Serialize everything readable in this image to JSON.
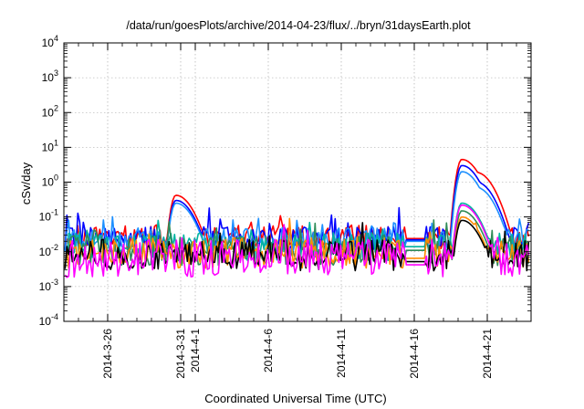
{
  "chart_data": {
    "type": "line",
    "title": "/data/run/goesPlots/archive/2014-04-23/flux/../bryn/31daysEarth.plot",
    "xlabel": "Coordinated Universal Time (UTC)",
    "ylabel": "cSv/day",
    "y_scale": "log",
    "ylim_exponent": [
      -4,
      4
    ],
    "y_tick_labels": [
      {
        "base": "10",
        "exp": "-4"
      },
      {
        "base": "10",
        "exp": "-3"
      },
      {
        "base": "10",
        "exp": "-2"
      },
      {
        "base": "10",
        "exp": "-1"
      },
      {
        "base": "10",
        "exp": "0"
      },
      {
        "base": "10",
        "exp": "1"
      },
      {
        "base": "10",
        "exp": "2"
      },
      {
        "base": "10",
        "exp": "3"
      },
      {
        "base": "10",
        "exp": "4"
      }
    ],
    "xlim": [
      "2014-03-23",
      "2014-04-24"
    ],
    "x_tick_labels": [
      "2014-3-26",
      "2014-3-31",
      "2014-4-1",
      "2014-4-6",
      "2014-4-11",
      "2014-4-16",
      "2014-4-21"
    ],
    "x_tick_dates": [
      "2014-03-26",
      "2014-03-31",
      "2014-04-01",
      "2014-04-06",
      "2014-04-11",
      "2014-04-16",
      "2014-04-21"
    ],
    "grid": true,
    "legend": "none",
    "series": [
      {
        "color": "#ff0000",
        "baseline": 0.026,
        "spread": 0.35,
        "peaks": [
          {
            "date": "2014-03-30T16:00",
            "value": 0.42
          },
          {
            "date": "2014-04-19T06:00",
            "value": 4.5
          },
          {
            "date": "2014-04-20T06:00",
            "value": 1.9
          },
          {
            "date": "2014-04-21T00:00",
            "value": 0.18
          }
        ],
        "gap": {
          "from": "2014-04-15T08:00",
          "to": "2014-04-16T20:00",
          "value": 0.024
        }
      },
      {
        "color": "#0000ff",
        "baseline": 0.024,
        "spread": 0.35,
        "peaks": [
          {
            "date": "2014-03-30T16:00",
            "value": 0.3
          },
          {
            "date": "2014-04-19T06:00",
            "value": 3.0
          },
          {
            "date": "2014-04-20T06:00",
            "value": 1.0
          },
          {
            "date": "2014-04-21T00:00",
            "value": 0.12
          }
        ],
        "gap": {
          "from": "2014-04-15T08:00",
          "to": "2014-04-16T20:00",
          "value": 0.022
        }
      },
      {
        "color": "#1e90ff",
        "baseline": 0.022,
        "spread": 0.35,
        "peaks": [
          {
            "date": "2014-03-30T16:00",
            "value": 0.25
          },
          {
            "date": "2014-04-19T06:00",
            "value": 2.0
          },
          {
            "date": "2014-04-20T06:00",
            "value": 0.7
          },
          {
            "date": "2014-04-21T00:00",
            "value": 0.09
          }
        ],
        "gap": {
          "from": "2014-04-15T08:00",
          "to": "2014-04-16T20:00",
          "value": 0.02
        }
      },
      {
        "color": "#00b3a0",
        "baseline": 0.014,
        "spread": 0.4,
        "peaks": [
          {
            "date": "2014-04-19T06:00",
            "value": 0.25
          },
          {
            "date": "2014-04-20T06:00",
            "value": 0.04
          }
        ],
        "gap": {
          "from": "2014-04-15T08:00",
          "to": "2014-04-16T20:00",
          "value": 0.014
        }
      },
      {
        "color": "#2e8b57",
        "baseline": 0.011,
        "spread": 0.45,
        "peaks": [
          {
            "date": "2014-04-19T06:00",
            "value": 0.15
          }
        ],
        "gap": {
          "from": "2014-04-15T08:00",
          "to": "2014-04-16T20:00",
          "value": 0.011
        }
      },
      {
        "color": "#ff8c00",
        "baseline": 0.0095,
        "spread": 0.45,
        "peaks": [
          {
            "date": "2014-04-19T06:00",
            "value": 0.1
          }
        ],
        "gap": {
          "from": "2014-04-15T08:00",
          "to": "2014-04-16T20:00",
          "value": 0.0065
        }
      },
      {
        "color": "#000000",
        "baseline": 0.008,
        "spread": 0.45,
        "peaks": [
          {
            "date": "2014-04-19T06:00",
            "value": 0.08
          }
        ],
        "gap": {
          "from": "2014-04-15T08:00",
          "to": "2014-04-16T20:00",
          "value": 0.0052
        }
      },
      {
        "color": "#ff00ff",
        "baseline": 0.0065,
        "spread": 0.55,
        "peaks": [
          {
            "date": "2014-04-19T06:00",
            "value": 0.22
          },
          {
            "date": "2014-04-20T06:00",
            "value": 0.01
          }
        ],
        "gap": {
          "from": "2014-04-15T08:00",
          "to": "2014-04-16T20:00",
          "value": 0.0042
        }
      }
    ]
  }
}
